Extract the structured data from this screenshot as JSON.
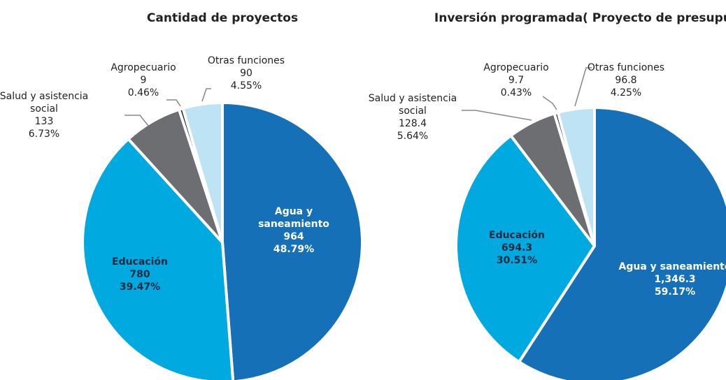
{
  "chart_data": [
    {
      "type": "pie",
      "title": "Cantidad de proyectos",
      "categories": [
        "Agua y saneamiento",
        "Educación",
        "Salud y asistencia social",
        "Agropecuario",
        "Otras funciones"
      ],
      "values": [
        964,
        780,
        133,
        9,
        90
      ],
      "percent_labels": [
        "48.79%",
        "39.47%",
        "6.73%",
        "0.46%",
        "4.55%"
      ],
      "colors": [
        "#1570b8",
        "#00a9e0",
        "#6d6e71",
        "#231f20",
        "#bde3f5"
      ]
    },
    {
      "type": "pie",
      "title": "Inversión programada",
      "subtitle": "( Proyecto de presupuesto)",
      "categories": [
        "Agua y saneamiento",
        "Educación",
        "Salud y asistencia social",
        "Agropecuario",
        "Otras funciones"
      ],
      "values": [
        1346.3,
        694.3,
        128.4,
        9.7,
        96.8
      ],
      "value_labels": [
        "1,346.3",
        "694.3",
        "128.4",
        "9.7",
        "96.8"
      ],
      "percent_labels": [
        "59.17%",
        "30.51%",
        "5.64%",
        "0.43%",
        "4.25%"
      ],
      "colors": [
        "#1570b8",
        "#00a9e0",
        "#6d6e71",
        "#231f20",
        "#bde3f5"
      ]
    }
  ]
}
